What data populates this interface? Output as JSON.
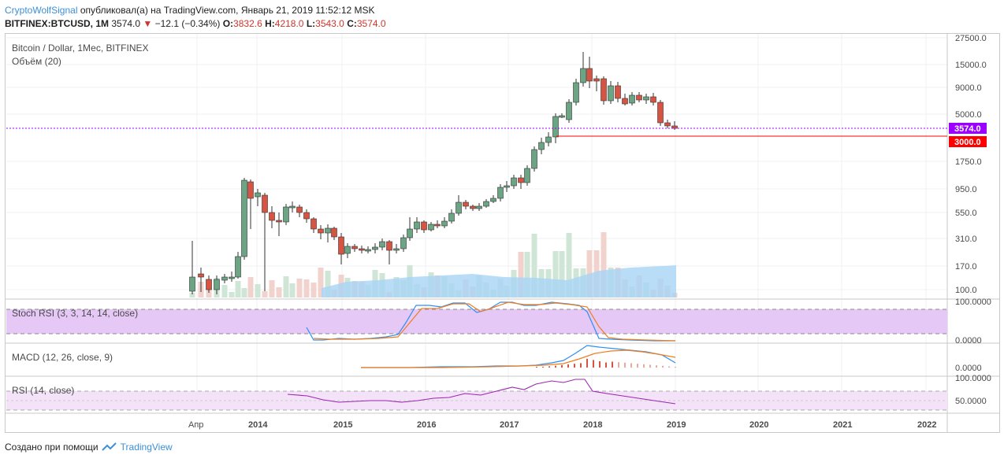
{
  "header": {
    "author": "CryptoWolfSignal",
    "published_text": "опубликовал(а) на TradingView.com, Январь 21, 2019 11:52:12 MSK"
  },
  "ticker": {
    "symbol": "BITFINEX:BTCUSD, 1M",
    "last": "3574.0",
    "arrow": "▼",
    "change": "−12.1 (−0.34%)",
    "o_label": "O:",
    "o": "3832.6",
    "h_label": "H:",
    "h": "4218.0",
    "l_label": "L:",
    "l": "3543.0",
    "c_label": "C:",
    "c": "3574.0"
  },
  "main_pane": {
    "title": "Bitcoin / Dollar, 1Мес, BITFINEX",
    "volume_label": "Объём (20)",
    "price_badge": "3574.0",
    "level_badge": "3000.0",
    "price_badge_color": "#9b00ff",
    "level_badge_color": "#ff0000",
    "y_ticks": [
      "27500.0",
      "15000.0",
      "9000.0",
      "5000.0",
      "1750.0",
      "950.0",
      "550.0",
      "310.0",
      "170.0",
      "100.0"
    ]
  },
  "stoch_pane": {
    "title": "Stoch RSI (3, 3, 14, 14, close)",
    "y_ticks": [
      "100.0000",
      "0.0000"
    ]
  },
  "macd_pane": {
    "title": "MACD (12, 26, close, 9)",
    "y_ticks": [
      "0.0000"
    ]
  },
  "rsi_pane": {
    "title": "RSI (14, close)",
    "y_ticks": [
      "100.0000",
      "50.0000"
    ]
  },
  "x_axis": {
    "labels": [
      "Апр",
      "2014",
      "2015",
      "2016",
      "2017",
      "2018",
      "2019",
      "2020",
      "2021",
      "2022"
    ]
  },
  "footer": {
    "created_with": "Создано при помощи",
    "brand": "TradingView"
  },
  "colors": {
    "up": "#6ba583",
    "down": "#d75442",
    "stoch_band": "#e6c8f7",
    "rsi_band": "#f3e2f8",
    "volume_ma": "#a8d4f5",
    "macd_line": "#2f8ff0",
    "signal_line": "#f07c1e"
  }
}
